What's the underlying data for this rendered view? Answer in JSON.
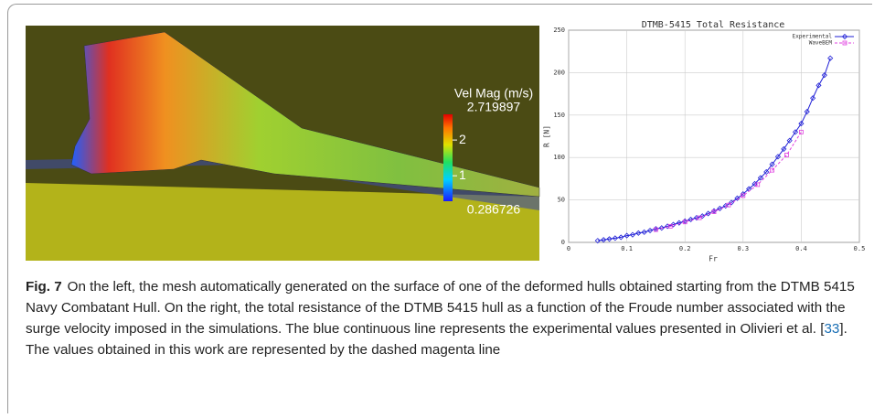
{
  "chart_data": {
    "type": "line",
    "title": "DTMB-5415 Total Resistance",
    "x_label": "Fr",
    "y_label": "R [N]",
    "xlim": [
      0,
      0.5
    ],
    "xticks": [
      0,
      0.1,
      0.2,
      0.3,
      0.4,
      0.5
    ],
    "ylim": [
      0,
      250
    ],
    "yticks": [
      0,
      50,
      100,
      150,
      200,
      250
    ],
    "grid": true,
    "legend": "top-right",
    "series": [
      {
        "name": "Experimental",
        "color": "#1f1fd6",
        "dashed": false,
        "marker": "diamond",
        "x": [
          0.05,
          0.06,
          0.07,
          0.08,
          0.09,
          0.1,
          0.11,
          0.12,
          0.13,
          0.14,
          0.15,
          0.16,
          0.17,
          0.18,
          0.19,
          0.2,
          0.21,
          0.22,
          0.23,
          0.24,
          0.25,
          0.26,
          0.27,
          0.28,
          0.29,
          0.3,
          0.31,
          0.32,
          0.33,
          0.34,
          0.35,
          0.36,
          0.37,
          0.38,
          0.39,
          0.4,
          0.41,
          0.42,
          0.43,
          0.44,
          0.45
        ],
        "values": [
          2,
          3,
          4,
          5,
          6,
          8,
          9,
          11,
          12,
          14,
          16,
          17,
          19,
          21,
          23,
          25,
          27,
          29,
          31,
          34,
          37,
          40,
          43,
          47,
          52,
          57,
          63,
          69,
          76,
          83,
          92,
          101,
          110,
          120,
          130,
          140,
          154,
          170,
          185,
          197,
          217
        ]
      },
      {
        "name": "WaveBEM",
        "color": "#e040e0",
        "dashed": true,
        "marker": "square",
        "x": [
          0.15,
          0.175,
          0.2,
          0.225,
          0.25,
          0.275,
          0.3,
          0.325,
          0.35,
          0.375,
          0.4
        ],
        "values": [
          15,
          19,
          24,
          29,
          36,
          44,
          55,
          68,
          85,
          103,
          130
        ]
      }
    ]
  },
  "render": {
    "colorbar": {
      "title": "Vel Mag (m/s)",
      "max": 2.719897,
      "min": 0.286726,
      "ticks": [
        2,
        1
      ]
    }
  },
  "caption": {
    "label": "Fig. 7",
    "text_before": "On the left, the mesh automatically generated on the surface of one of the deformed hulls obtained starting from the DTMB 5415 Navy Combatant Hull. On the right, the total resistance of the DTMB 5415 hull as a function of the Froude number associated with the surge velocity imposed in the simulations. The blue continuous line represents the experimental values presented in Olivieri et al. [",
    "ref": "33",
    "text_after": "]. The values obtained in this work are represented by the dashed magenta line"
  }
}
